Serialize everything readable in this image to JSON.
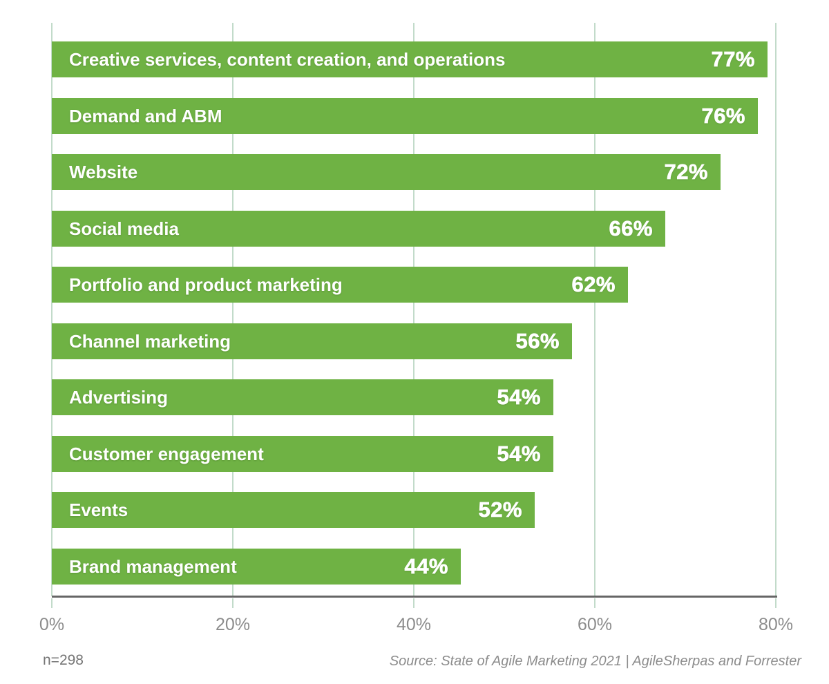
{
  "chart_data": {
    "type": "bar",
    "orientation": "horizontal",
    "title": "",
    "xlabel": "",
    "ylabel": "",
    "categories": [
      "Creative services, content creation, and operations",
      "Demand and ABM",
      "Website",
      "Social media",
      "Portfolio and product marketing",
      "Channel marketing",
      "Advertising",
      "Customer engagement",
      "Events",
      "Brand management"
    ],
    "values": [
      77,
      76,
      72,
      66,
      62,
      56,
      54,
      54,
      52,
      44
    ],
    "value_labels": [
      "77%",
      "76%",
      "72%",
      "66%",
      "62%",
      "56%",
      "54%",
      "54%",
      "52%",
      "44%"
    ],
    "xlim": [
      0,
      80
    ],
    "x_ticks": [
      "0%",
      "20%",
      "40%",
      "60%",
      "80%"
    ],
    "x_tick_values": [
      0,
      20,
      40,
      60,
      80
    ],
    "grid": "vertical",
    "legend": false,
    "colors": {
      "bar": "#6fb244",
      "bar_text": "#ffffff",
      "gridline": "#c2dbca",
      "axis_line": "#666666",
      "tick_label": "#8c8c8c"
    }
  },
  "footer": {
    "sample_note": "n=298",
    "source": "Source: State of Agile Marketing 2021 | AgileSherpas and Forrester"
  }
}
